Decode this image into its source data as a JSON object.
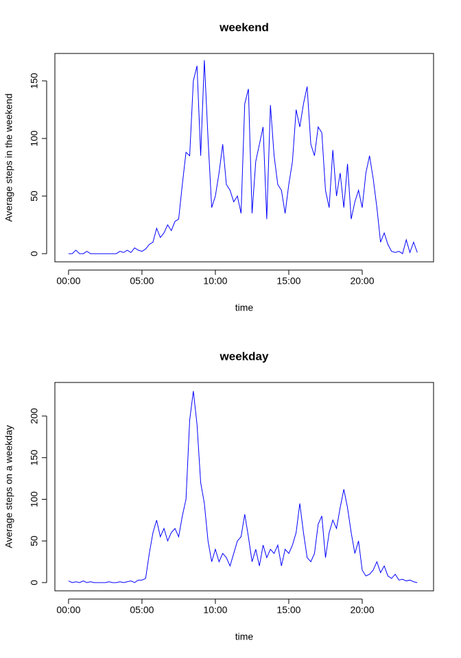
{
  "chart_data": [
    {
      "type": "line",
      "title": "weekend",
      "x_label": "time",
      "y_label": "Average steps in the weekend",
      "color": "#0000ff",
      "x": [
        0,
        0.25,
        0.5,
        0.75,
        1,
        1.25,
        1.5,
        1.75,
        2,
        2.25,
        2.5,
        2.75,
        3,
        3.25,
        3.5,
        3.75,
        4,
        4.25,
        4.5,
        4.75,
        5,
        5.25,
        5.5,
        5.75,
        6,
        6.25,
        6.5,
        6.75,
        7,
        7.25,
        7.5,
        7.75,
        8,
        8.25,
        8.5,
        8.75,
        9,
        9.25,
        9.5,
        9.75,
        10,
        10.25,
        10.5,
        10.75,
        11,
        11.25,
        11.5,
        11.75,
        12,
        12.25,
        12.5,
        12.75,
        13,
        13.25,
        13.5,
        13.75,
        14,
        14.25,
        14.5,
        14.75,
        15,
        15.25,
        15.5,
        15.75,
        16,
        16.25,
        16.5,
        16.75,
        17,
        17.25,
        17.5,
        17.75,
        18,
        18.25,
        18.5,
        18.75,
        19,
        19.25,
        19.5,
        19.75,
        20,
        20.25,
        20.5,
        20.75,
        21,
        21.25,
        21.5,
        21.75,
        22,
        22.25,
        22.5,
        22.75,
        23,
        23.25,
        23.5,
        23.75
      ],
      "values": [
        0,
        0,
        3,
        0,
        0,
        2,
        0,
        0,
        0,
        0,
        0,
        0,
        0,
        0,
        2,
        1,
        3,
        1,
        5,
        3,
        2,
        4,
        8,
        10,
        22,
        14,
        18,
        25,
        20,
        28,
        30,
        60,
        88,
        85,
        150,
        163,
        85,
        168,
        100,
        40,
        50,
        70,
        95,
        60,
        55,
        45,
        50,
        35,
        130,
        143,
        35,
        80,
        95,
        110,
        30,
        129,
        85,
        60,
        55,
        35,
        60,
        80,
        125,
        110,
        130,
        145,
        95,
        85,
        110,
        105,
        55,
        40,
        90,
        50,
        70,
        40,
        78,
        30,
        45,
        55,
        40,
        70,
        85,
        65,
        40,
        10,
        18,
        8,
        2,
        1,
        2,
        0,
        12,
        1,
        10,
        1
      ],
      "xlim": [
        -0.93,
        24.86
      ],
      "ylim": [
        -7.1,
        173.8
      ],
      "xticks": [
        {
          "value": 0,
          "label": "00:00"
        },
        {
          "value": 5,
          "label": "05:00"
        },
        {
          "value": 10,
          "label": "10:00"
        },
        {
          "value": 15,
          "label": "15:00"
        },
        {
          "value": 20,
          "label": "20:00"
        }
      ],
      "yticks": [
        0,
        50,
        100,
        150
      ]
    },
    {
      "type": "line",
      "title": "weekday",
      "x_label": "time",
      "y_label": "Average steps on a weekday",
      "color": "#0000ff",
      "x": [
        0,
        0.25,
        0.5,
        0.75,
        1,
        1.25,
        1.5,
        1.75,
        2,
        2.25,
        2.5,
        2.75,
        3,
        3.25,
        3.5,
        3.75,
        4,
        4.25,
        4.5,
        4.75,
        5,
        5.25,
        5.5,
        5.75,
        6,
        6.25,
        6.5,
        6.75,
        7,
        7.25,
        7.5,
        7.75,
        8,
        8.25,
        8.5,
        8.75,
        9,
        9.25,
        9.5,
        9.75,
        10,
        10.25,
        10.5,
        10.75,
        11,
        11.25,
        11.5,
        11.75,
        12,
        12.25,
        12.5,
        12.75,
        13,
        13.25,
        13.5,
        13.75,
        14,
        14.25,
        14.5,
        14.75,
        15,
        15.25,
        15.5,
        15.75,
        16,
        16.25,
        16.5,
        16.75,
        17,
        17.25,
        17.5,
        17.75,
        18,
        18.25,
        18.5,
        18.75,
        19,
        19.25,
        19.5,
        19.75,
        20,
        20.25,
        20.5,
        20.75,
        21,
        21.25,
        21.5,
        21.75,
        22,
        22.25,
        22.5,
        22.75,
        23,
        23.25,
        23.5,
        23.75
      ],
      "values": [
        2,
        0,
        1,
        0,
        2,
        0,
        1,
        0,
        0,
        0,
        0,
        1,
        0,
        0,
        1,
        0,
        1,
        2,
        0,
        3,
        3,
        5,
        35,
        60,
        75,
        55,
        65,
        50,
        60,
        65,
        55,
        80,
        100,
        195,
        230,
        190,
        120,
        95,
        50,
        25,
        40,
        25,
        35,
        30,
        20,
        35,
        50,
        55,
        82,
        55,
        25,
        40,
        20,
        45,
        30,
        40,
        35,
        45,
        20,
        40,
        35,
        45,
        60,
        95,
        60,
        30,
        25,
        35,
        70,
        80,
        30,
        60,
        75,
        65,
        90,
        112,
        90,
        60,
        35,
        50,
        15,
        8,
        10,
        15,
        25,
        12,
        20,
        8,
        5,
        10,
        3,
        4,
        2,
        3,
        1,
        0
      ],
      "xlim": [
        -0.93,
        24.86
      ],
      "ylim": [
        -9.9,
        240.3
      ],
      "xticks": [
        {
          "value": 0,
          "label": "00:00"
        },
        {
          "value": 5,
          "label": "05:00"
        },
        {
          "value": 10,
          "label": "10:00"
        },
        {
          "value": 15,
          "label": "15:00"
        },
        {
          "value": 20,
          "label": "20:00"
        }
      ],
      "yticks": [
        0,
        50,
        100,
        150,
        200
      ]
    }
  ]
}
